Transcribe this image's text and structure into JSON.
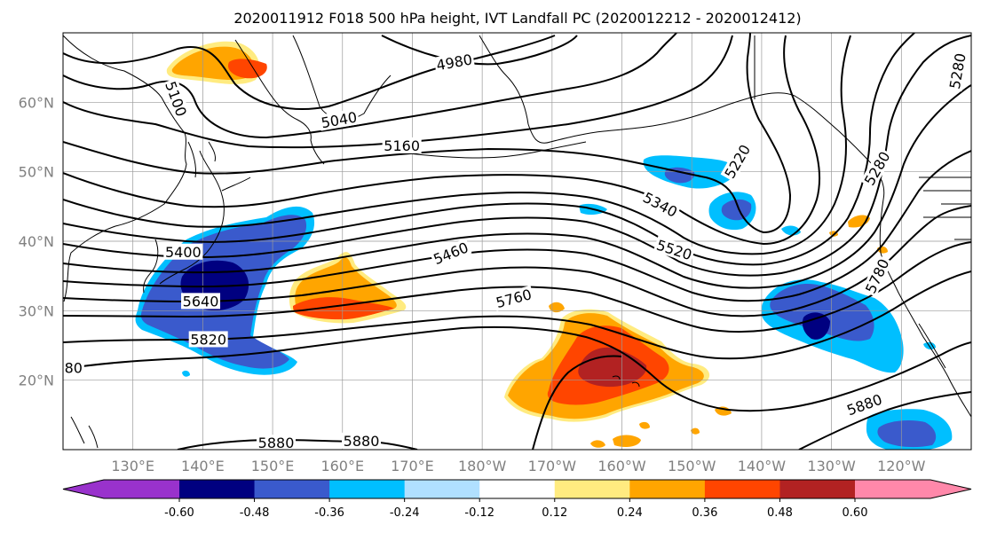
{
  "title": "2020011912 F018 500 hPa height, IVT Landfall PC (2020012212 - 2020012412)",
  "map": {
    "lon_range": [
      120,
      250
    ],
    "lat_range": [
      10,
      70
    ],
    "lat_ticks": [
      {
        "value": 20,
        "label": "20°N"
      },
      {
        "value": 30,
        "label": "30°N"
      },
      {
        "value": 40,
        "label": "40°N"
      },
      {
        "value": 50,
        "label": "50°N"
      },
      {
        "value": 60,
        "label": "60°N"
      }
    ],
    "lon_ticks": [
      {
        "value": 130,
        "label": "130°E"
      },
      {
        "value": 140,
        "label": "140°E"
      },
      {
        "value": 150,
        "label": "150°E"
      },
      {
        "value": 160,
        "label": "160°E"
      },
      {
        "value": 170,
        "label": "170°E"
      },
      {
        "value": 180,
        "label": "180°W"
      },
      {
        "value": 190,
        "label": "170°W"
      },
      {
        "value": 200,
        "label": "160°W"
      },
      {
        "value": 210,
        "label": "150°W"
      },
      {
        "value": 220,
        "label": "140°W"
      },
      {
        "value": 230,
        "label": "130°W"
      },
      {
        "value": 240,
        "label": "120°W"
      }
    ],
    "contour_labels": [
      {
        "text": "4980",
        "lon": 176,
        "lat": 65.8,
        "rot": -10
      },
      {
        "text": "5100",
        "lon": 136.2,
        "lat": 60.5,
        "rot": 70
      },
      {
        "text": "5040",
        "lon": 159.5,
        "lat": 57.5,
        "rot": -10
      },
      {
        "text": "5160",
        "lon": 168.5,
        "lat": 53.8,
        "rot": 0
      },
      {
        "text": "5220",
        "lon": 216.5,
        "lat": 51.5,
        "rot": -60
      },
      {
        "text": "5280",
        "lon": 248,
        "lat": 64.5,
        "rot": -80
      },
      {
        "text": "5280",
        "lon": 236.5,
        "lat": 50.5,
        "rot": -60
      },
      {
        "text": "5340",
        "lon": 205.5,
        "lat": 45.3,
        "rot": 28
      },
      {
        "text": "5520",
        "lon": 207.5,
        "lat": 38.8,
        "rot": 18
      },
      {
        "text": "5460",
        "lon": 175.5,
        "lat": 38.3,
        "rot": -22
      },
      {
        "text": "5400",
        "lon": 137.2,
        "lat": 38.5,
        "rot": 0
      },
      {
        "text": "5760",
        "lon": 184.5,
        "lat": 31.8,
        "rot": -15
      },
      {
        "text": "5780",
        "lon": 236.5,
        "lat": 35,
        "rot": -65
      },
      {
        "text": "5640",
        "lon": 139.7,
        "lat": 31.4,
        "rot": 0
      },
      {
        "text": "5820",
        "lon": 140.8,
        "lat": 25.9,
        "rot": 0
      },
      {
        "text": "5880",
        "lon": 150.5,
        "lat": 11,
        "rot": 0
      },
      {
        "text": "5880",
        "lon": 162.7,
        "lat": 11.3,
        "rot": 0
      },
      {
        "text": "5880",
        "lon": 234.7,
        "lat": 16.5,
        "rot": -20
      },
      {
        "text": "80",
        "lon": 121.5,
        "lat": 21.8,
        "rot": 0
      }
    ]
  },
  "colorbar": {
    "colors": [
      "#9932cc",
      "#000080",
      "#3a5acc",
      "#00bfff",
      "#b0e0ff",
      "#ffffff",
      "#ffeb80",
      "#ffa500",
      "#ff4500",
      "#b22222",
      "#ff88aa"
    ],
    "ticks": [
      "-0.60",
      "-0.48",
      "-0.36",
      "-0.24",
      "-0.12",
      "0.12",
      "0.24",
      "0.36",
      "0.48",
      "0.60"
    ]
  }
}
